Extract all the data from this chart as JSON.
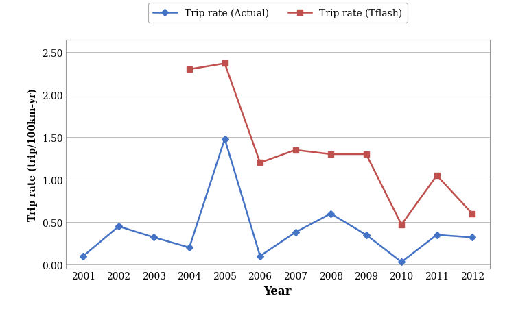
{
  "years": [
    2001,
    2002,
    2003,
    2004,
    2005,
    2006,
    2007,
    2008,
    2009,
    2010,
    2011,
    2012
  ],
  "actual": [
    0.1,
    0.45,
    0.32,
    0.2,
    1.48,
    0.1,
    0.38,
    0.6,
    0.35,
    0.03,
    0.35,
    0.32
  ],
  "tflash_years": [
    2004,
    2005,
    2006,
    2007,
    2008,
    2009,
    2010,
    2011,
    2012
  ],
  "tflash": [
    2.3,
    2.37,
    1.2,
    1.35,
    1.3,
    1.3,
    0.47,
    1.05,
    0.6
  ],
  "actual_color": "#4472C4",
  "tflash_color": "#C0504D",
  "xlabel": "Year",
  "ylabel": "Trip rate (trip/100km-yr)",
  "ylim": [
    -0.05,
    2.65
  ],
  "yticks": [
    0.0,
    0.5,
    1.0,
    1.5,
    2.0,
    2.5
  ],
  "legend_actual": "Trip rate (Actual)",
  "legend_tflash": "Trip rate (Tflash)",
  "background_color": "#ffffff",
  "grid_color": "#bbbbbb",
  "border_color": "#999999"
}
